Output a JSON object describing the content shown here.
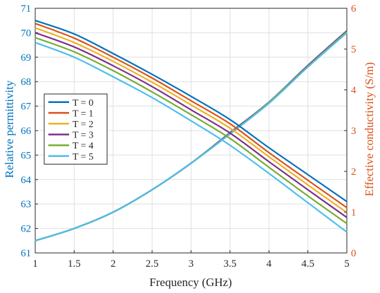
{
  "chart_data": {
    "type": "line",
    "xlabel": "Frequency (GHz)",
    "ylabel_left": "Relative permittivity",
    "ylabel_right": "Effective conductivity (S/m)",
    "xlim": [
      1,
      5
    ],
    "ylim_left": [
      61,
      71
    ],
    "ylim_right": [
      0,
      6
    ],
    "xticks": [
      "1",
      "1.5",
      "2",
      "2.5",
      "3",
      "3.5",
      "4",
      "4.5",
      "5"
    ],
    "yticks_left": [
      "61",
      "62",
      "63",
      "64",
      "65",
      "66",
      "67",
      "68",
      "69",
      "70",
      "71"
    ],
    "yticks_right": [
      "0",
      "1",
      "2",
      "3",
      "4",
      "5",
      "6"
    ],
    "grid": true,
    "legend_position": "left",
    "colors": {
      "left_axis": "#0072BD",
      "right_axis": "#D95319",
      "grid": "#dfdfdf"
    },
    "x": [
      1,
      1.5,
      2,
      2.5,
      3,
      3.5,
      4,
      4.5,
      5
    ],
    "series": [
      {
        "name": "T = 0",
        "color": "#0072BD",
        "permittivity": [
          70.5,
          69.95,
          69.15,
          68.3,
          67.4,
          66.45,
          65.3,
          64.2,
          63.1
        ],
        "conductivity": [
          0.3,
          0.6,
          1.0,
          1.55,
          2.2,
          2.95,
          3.7,
          4.6,
          5.45
        ]
      },
      {
        "name": "T = 1",
        "color": "#D95319",
        "permittivity": [
          70.38,
          69.78,
          69.0,
          68.15,
          67.22,
          66.28,
          65.1,
          63.97,
          62.85
        ],
        "conductivity": [
          0.3,
          0.6,
          1.0,
          1.55,
          2.2,
          2.94,
          3.69,
          4.59,
          5.44
        ]
      },
      {
        "name": "T = 2",
        "color": "#EDB120",
        "permittivity": [
          70.2,
          69.6,
          68.83,
          67.98,
          67.05,
          66.1,
          64.93,
          63.78,
          62.65
        ],
        "conductivity": [
          0.3,
          0.6,
          1.0,
          1.55,
          2.2,
          2.93,
          3.69,
          4.58,
          5.43
        ]
      },
      {
        "name": "T = 3",
        "color": "#7E2F8E",
        "permittivity": [
          70.0,
          69.42,
          68.65,
          67.8,
          66.85,
          65.9,
          64.73,
          63.58,
          62.45
        ],
        "conductivity": [
          0.3,
          0.6,
          1.0,
          1.55,
          2.2,
          2.93,
          3.68,
          4.58,
          5.43
        ]
      },
      {
        "name": "T = 4",
        "color": "#77AC30",
        "permittivity": [
          69.8,
          69.22,
          68.45,
          67.58,
          66.65,
          65.68,
          64.5,
          63.33,
          62.2
        ],
        "conductivity": [
          0.3,
          0.6,
          1.0,
          1.55,
          2.2,
          2.92,
          3.68,
          4.57,
          5.42
        ]
      },
      {
        "name": "T = 5",
        "color": "#4DBEEE",
        "permittivity": [
          69.6,
          69.0,
          68.2,
          67.35,
          66.4,
          65.4,
          64.25,
          63.05,
          61.85
        ],
        "conductivity": [
          0.3,
          0.6,
          1.0,
          1.55,
          2.2,
          2.92,
          3.67,
          4.56,
          5.4
        ]
      }
    ]
  }
}
